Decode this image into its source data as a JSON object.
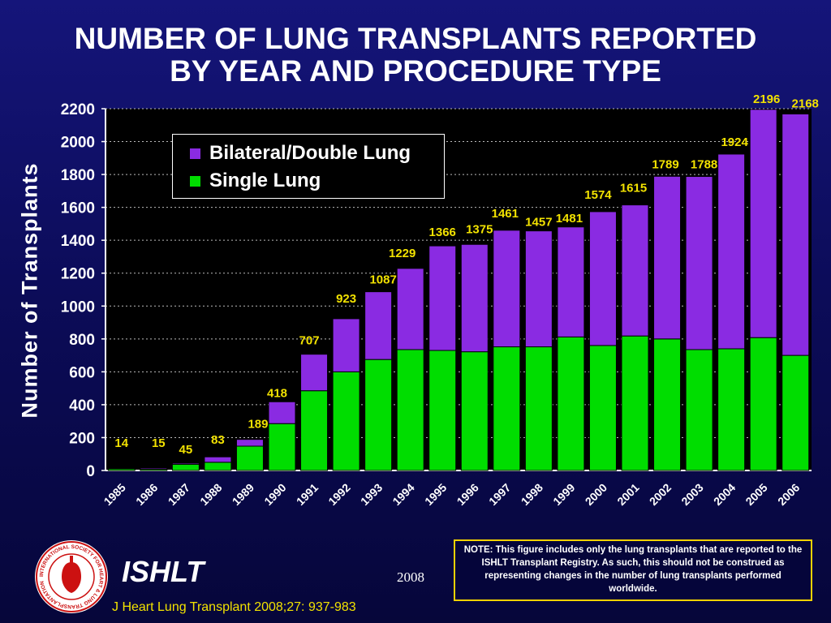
{
  "chart_data": {
    "type": "bar",
    "stacked": true,
    "title_lines": [
      "NUMBER OF LUNG TRANSPLANTS REPORTED",
      "BY YEAR AND PROCEDURE TYPE"
    ],
    "ylabel": "Number of Transplants",
    "xlabel": "",
    "ylim": [
      0,
      2200
    ],
    "yticks": [
      0,
      200,
      400,
      600,
      800,
      1000,
      1200,
      1400,
      1600,
      1800,
      2000,
      2200
    ],
    "grid": "horizontal dotted",
    "legend_placement": "top-left inside plot",
    "categories": [
      "1985",
      "1986",
      "1987",
      "1988",
      "1989",
      "1990",
      "1991",
      "1992",
      "1993",
      "1994",
      "1995",
      "1996",
      "1997",
      "1998",
      "1999",
      "2000",
      "2001",
      "2002",
      "2003",
      "2004",
      "2005",
      "2006"
    ],
    "series": [
      {
        "name": "Single Lung",
        "color": "#00dd00",
        "values": [
          10,
          8,
          38,
          50,
          148,
          285,
          485,
          600,
          675,
          735,
          730,
          722,
          752,
          752,
          812,
          760,
          818,
          800,
          735,
          740,
          808,
          700
        ]
      },
      {
        "name": "Bilateral/Double Lung",
        "color": "#8a2be2",
        "values": [
          4,
          7,
          7,
          33,
          41,
          133,
          222,
          323,
          412,
          494,
          636,
          653,
          709,
          705,
          669,
          814,
          797,
          989,
          1053,
          1184,
          1388,
          1468
        ]
      }
    ],
    "totals": [
      14,
      15,
      45,
      83,
      189,
      418,
      707,
      923,
      1087,
      1229,
      1366,
      1375,
      1461,
      1457,
      1481,
      1574,
      1615,
      1789,
      1788,
      1924,
      2196,
      2168
    ]
  },
  "legend": {
    "bilateral_label": "Bilateral/Double Lung",
    "single_label": "Single Lung"
  },
  "note": "NOTE: This figure includes only the lung transplants that are reported to the ISHLT Transplant Registry.  As such, this should not be construed as representing changes in the number of lung transplants performed worldwide.",
  "footer": {
    "org": "ISHLT",
    "year": "2008",
    "citation": "J Heart Lung Transplant 2008;27: 937-983"
  },
  "logo": {
    "ring_text": "INTERNATIONAL SOCIETY FOR HEART & LUNG TRANSPLANTATION",
    "color": "#cc1111"
  }
}
